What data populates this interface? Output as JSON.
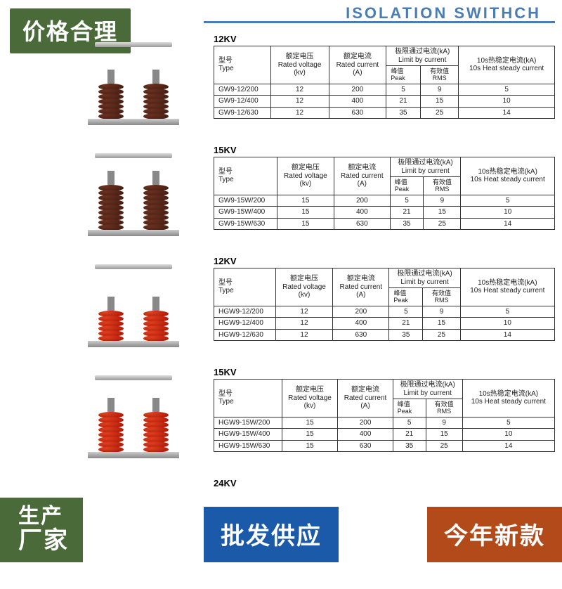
{
  "badge_top": "价格合理",
  "header_title": "ISOLATION SWITHCH",
  "banners": {
    "left_line1": "生产",
    "left_line2": "厂家",
    "mid": "批发供应",
    "right": "今年新款"
  },
  "table_headers": {
    "type_cn": "型号",
    "type_en": "Type",
    "voltage_cn": "额定电压",
    "voltage_en": "Rated voltage",
    "voltage_unit": "(kv)",
    "current_cn": "额定电流",
    "current_en": "Rated current",
    "current_unit": "(A)",
    "limit_cn": "极限通过电流(kA)",
    "limit_en": "Limit by current",
    "peak_cn": "峰值",
    "peak_en": "Peak",
    "rms_cn": "有效值",
    "rms_en": "RMS",
    "heat_cn": "10s热稳定电流(kA)",
    "heat_en": "10s Heat steady current"
  },
  "sections": [
    {
      "kv": "12KV",
      "insulator_color": "brown",
      "disc_count": 7,
      "rows": [
        {
          "type": "GW9-12/200",
          "voltage": "12",
          "current": "200",
          "peak": "5",
          "rms": "9",
          "heat": "5"
        },
        {
          "type": "GW9-12/400",
          "voltage": "12",
          "current": "400",
          "peak": "21",
          "rms": "15",
          "heat": "10"
        },
        {
          "type": "GW9-12/630",
          "voltage": "12",
          "current": "630",
          "peak": "35",
          "rms": "25",
          "heat": "14"
        }
      ]
    },
    {
      "kv": "15KV",
      "insulator_color": "brown",
      "disc_count": 9,
      "rows": [
        {
          "type": "GW9-15W/200",
          "voltage": "15",
          "current": "200",
          "peak": "5",
          "rms": "9",
          "heat": "5"
        },
        {
          "type": "GW9-15W/400",
          "voltage": "15",
          "current": "400",
          "peak": "21",
          "rms": "15",
          "heat": "10"
        },
        {
          "type": "GW9-15W/630",
          "voltage": "15",
          "current": "630",
          "peak": "35",
          "rms": "25",
          "heat": "14"
        }
      ]
    },
    {
      "kv": "12KV",
      "insulator_color": "red",
      "disc_count": 6,
      "rows": [
        {
          "type": "HGW9-12/200",
          "voltage": "12",
          "current": "200",
          "peak": "5",
          "rms": "9",
          "heat": "5"
        },
        {
          "type": "HGW9-12/400",
          "voltage": "12",
          "current": "400",
          "peak": "21",
          "rms": "15",
          "heat": "10"
        },
        {
          "type": "HGW9-12/630",
          "voltage": "12",
          "current": "630",
          "peak": "35",
          "rms": "25",
          "heat": "14"
        }
      ]
    },
    {
      "kv": "15KV",
      "insulator_color": "red",
      "disc_count": 8,
      "rows": [
        {
          "type": "HGW9-15W/200",
          "voltage": "15",
          "current": "200",
          "peak": "5",
          "rms": "9",
          "heat": "5"
        },
        {
          "type": "HGW9-15W/400",
          "voltage": "15",
          "current": "400",
          "peak": "21",
          "rms": "15",
          "heat": "10"
        },
        {
          "type": "HGW9-15W/630",
          "voltage": "15",
          "current": "630",
          "peak": "35",
          "rms": "25",
          "heat": "14"
        }
      ]
    }
  ],
  "final_kv": "24KV",
  "colors": {
    "green": "#4a6a3a",
    "blue": "#1a5aa8",
    "brown": "#b34a1a",
    "header_blue": "#4a7db3"
  }
}
